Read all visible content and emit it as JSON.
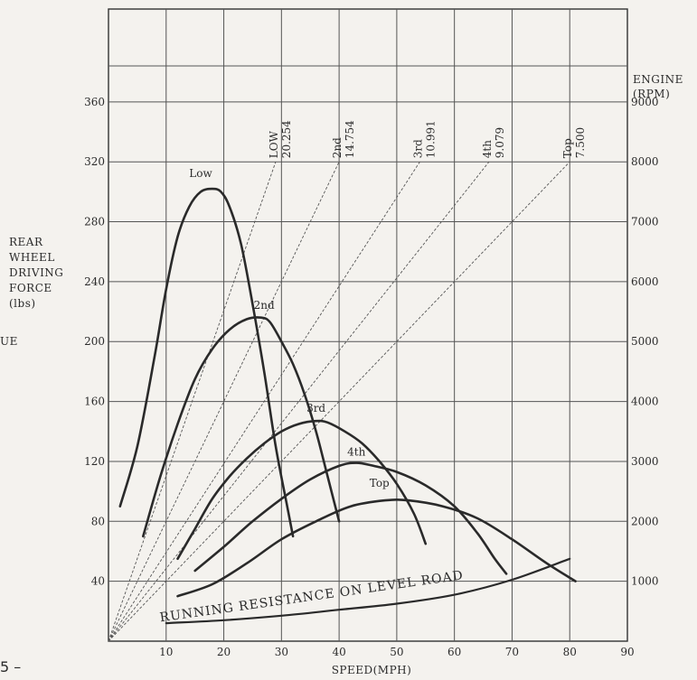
{
  "chart_data": {
    "type": "line",
    "xlabel": "SPEED(MPH)",
    "ylabel_left_lines": [
      "REAR",
      "WHEEL",
      "DRIVING",
      "FORCE",
      "(lbs)"
    ],
    "ylabel_right_lines": [
      "ENGINE",
      "(RPM)"
    ],
    "left_fragment": "UE",
    "page_fragment": "5 –",
    "road_label": "RUNNING RESISTANCE ON LEVEL ROAD",
    "xlim": [
      0,
      90
    ],
    "ylim_left": [
      0,
      360
    ],
    "ylim_right": [
      0,
      9000
    ],
    "x_ticks": [
      10,
      20,
      30,
      40,
      50,
      60,
      70,
      80,
      90
    ],
    "y_ticks_left": [
      40,
      80,
      120,
      160,
      200,
      240,
      280,
      320,
      360
    ],
    "y_ticks_right": [
      1000,
      2000,
      3000,
      4000,
      5000,
      6000,
      7000,
      8000,
      9000
    ],
    "grid": true,
    "series": [
      {
        "name": "Low",
        "points": [
          [
            2,
            90
          ],
          [
            5,
            130
          ],
          [
            8,
            190
          ],
          [
            10,
            235
          ],
          [
            12,
            270
          ],
          [
            14,
            290
          ],
          [
            16,
            300
          ],
          [
            18,
            302
          ],
          [
            19.5,
            300
          ],
          [
            21,
            290
          ],
          [
            23,
            265
          ],
          [
            25,
            225
          ],
          [
            27,
            180
          ],
          [
            29,
            130
          ],
          [
            31,
            90
          ],
          [
            32,
            70
          ]
        ]
      },
      {
        "name": "2nd",
        "points": [
          [
            6,
            70
          ],
          [
            9,
            110
          ],
          [
            12,
            145
          ],
          [
            15,
            175
          ],
          [
            18,
            195
          ],
          [
            21,
            208
          ],
          [
            24,
            215
          ],
          [
            26.5,
            216
          ],
          [
            28,
            213
          ],
          [
            30,
            200
          ],
          [
            32,
            185
          ],
          [
            34,
            165
          ],
          [
            36,
            140
          ],
          [
            38,
            110
          ],
          [
            40,
            80
          ]
        ]
      },
      {
        "name": "3rd",
        "points": [
          [
            12,
            55
          ],
          [
            15,
            75
          ],
          [
            18,
            95
          ],
          [
            21,
            110
          ],
          [
            24,
            122
          ],
          [
            27,
            132
          ],
          [
            30,
            140
          ],
          [
            33,
            145
          ],
          [
            36,
            147
          ],
          [
            38,
            146
          ],
          [
            41,
            140
          ],
          [
            44,
            132
          ],
          [
            47,
            120
          ],
          [
            50,
            105
          ],
          [
            53,
            85
          ],
          [
            55,
            65
          ]
        ]
      },
      {
        "name": "4th",
        "points": [
          [
            15,
            47
          ],
          [
            20,
            63
          ],
          [
            25,
            80
          ],
          [
            30,
            95
          ],
          [
            35,
            108
          ],
          [
            40,
            117
          ],
          [
            43,
            119
          ],
          [
            46,
            117
          ],
          [
            50,
            113
          ],
          [
            55,
            104
          ],
          [
            60,
            90
          ],
          [
            64,
            72
          ],
          [
            67,
            55
          ],
          [
            69,
            45
          ]
        ]
      },
      {
        "name": "Top",
        "points": [
          [
            12,
            30
          ],
          [
            18,
            38
          ],
          [
            24,
            52
          ],
          [
            30,
            68
          ],
          [
            36,
            80
          ],
          [
            42,
            90
          ],
          [
            48,
            94
          ],
          [
            52,
            94
          ],
          [
            58,
            90
          ],
          [
            64,
            82
          ],
          [
            70,
            68
          ],
          [
            76,
            52
          ],
          [
            81,
            40
          ]
        ]
      },
      {
        "name": "RUNNING RESISTANCE ON LEVEL ROAD",
        "points": [
          [
            10,
            12
          ],
          [
            20,
            14
          ],
          [
            30,
            17
          ],
          [
            40,
            21
          ],
          [
            50,
            25
          ],
          [
            60,
            31
          ],
          [
            70,
            41
          ],
          [
            80,
            55
          ]
        ]
      }
    ],
    "gear_ratios": [
      {
        "gear": "LOW",
        "ratio": "20.254",
        "end_x": 29,
        "end_rpm": 8000
      },
      {
        "gear": "2nd",
        "ratio": "14.754",
        "end_x": 40,
        "end_rpm": 8000
      },
      {
        "gear": "3rd",
        "ratio": "10.991",
        "end_x": 54,
        "end_rpm": 8000
      },
      {
        "gear": "4th",
        "ratio": "9.079",
        "end_x": 66,
        "end_rpm": 8000
      },
      {
        "gear": "Top",
        "ratio": "7.500",
        "end_x": 80,
        "end_rpm": 8000
      }
    ]
  }
}
